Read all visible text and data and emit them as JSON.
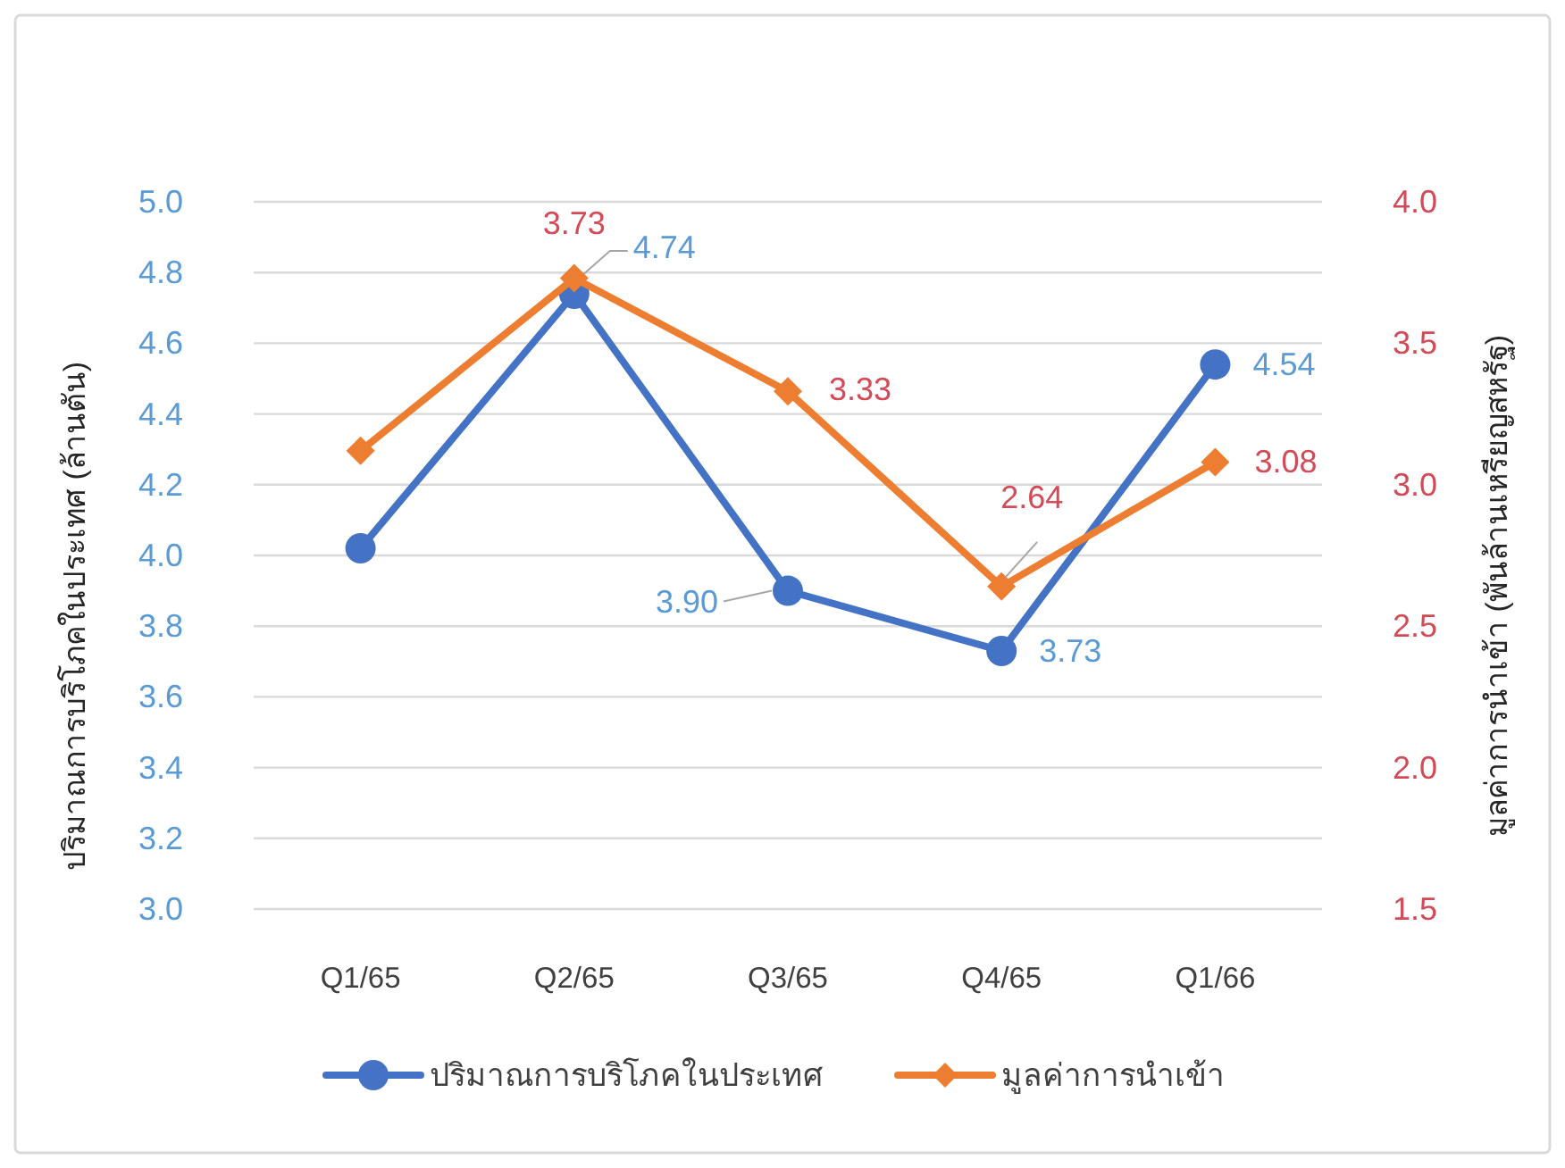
{
  "chart_data": {
    "type": "line",
    "categories": [
      "Q1/65",
      "Q2/65",
      "Q3/65",
      "Q4/65",
      "Q1/66"
    ],
    "ylabel": "ปริมาณการบริโภคในประเทศ (ล้านตัน)",
    "y2label": "มูลค่าการนำเข้า (พันล้านเหรียญสหรัฐ)",
    "ylim": [
      3.0,
      5.0
    ],
    "yticks": [
      {
        "value": 3.0,
        "label": "3.0"
      },
      {
        "value": 3.2,
        "label": "3.2"
      },
      {
        "value": 3.4,
        "label": "3.4"
      },
      {
        "value": 3.6,
        "label": "3.6"
      },
      {
        "value": 3.8,
        "label": "3.8"
      },
      {
        "value": 4.0,
        "label": "4.0"
      },
      {
        "value": 4.2,
        "label": "4.2"
      },
      {
        "value": 4.4,
        "label": "4.4"
      },
      {
        "value": 4.6,
        "label": "4.6"
      },
      {
        "value": 4.8,
        "label": "4.8"
      },
      {
        "value": 5.0,
        "label": "5.0"
      }
    ],
    "y2lim": [
      1.5,
      4.0
    ],
    "y2ticks": [
      {
        "value": 1.5,
        "label": "1.5"
      },
      {
        "value": 2.0,
        "label": "2.0"
      },
      {
        "value": 2.5,
        "label": "2.5"
      },
      {
        "value": 3.0,
        "label": "3.0"
      },
      {
        "value": 3.5,
        "label": "3.5"
      },
      {
        "value": 4.0,
        "label": "4.0"
      }
    ],
    "grid": "y",
    "legend": "bottom",
    "series": [
      {
        "name": "ปริมาณการบริโภคในประเทศ",
        "color": "#4472c4",
        "marker": "circle",
        "values": [
          4.02,
          4.74,
          3.9,
          3.73,
          4.54
        ],
        "value_labels": [
          null,
          "4.74",
          "3.90",
          "3.73",
          "4.54"
        ]
      },
      {
        "name": "มูลค่าการนำเข้า",
        "color": "#ed7d31",
        "marker": "diamond",
        "axis": "y2",
        "values": [
          3.12,
          3.73,
          3.33,
          2.64,
          3.08
        ],
        "value_labels": [
          null,
          "3.73",
          "3.33",
          "2.64",
          "3.08"
        ]
      }
    ]
  }
}
